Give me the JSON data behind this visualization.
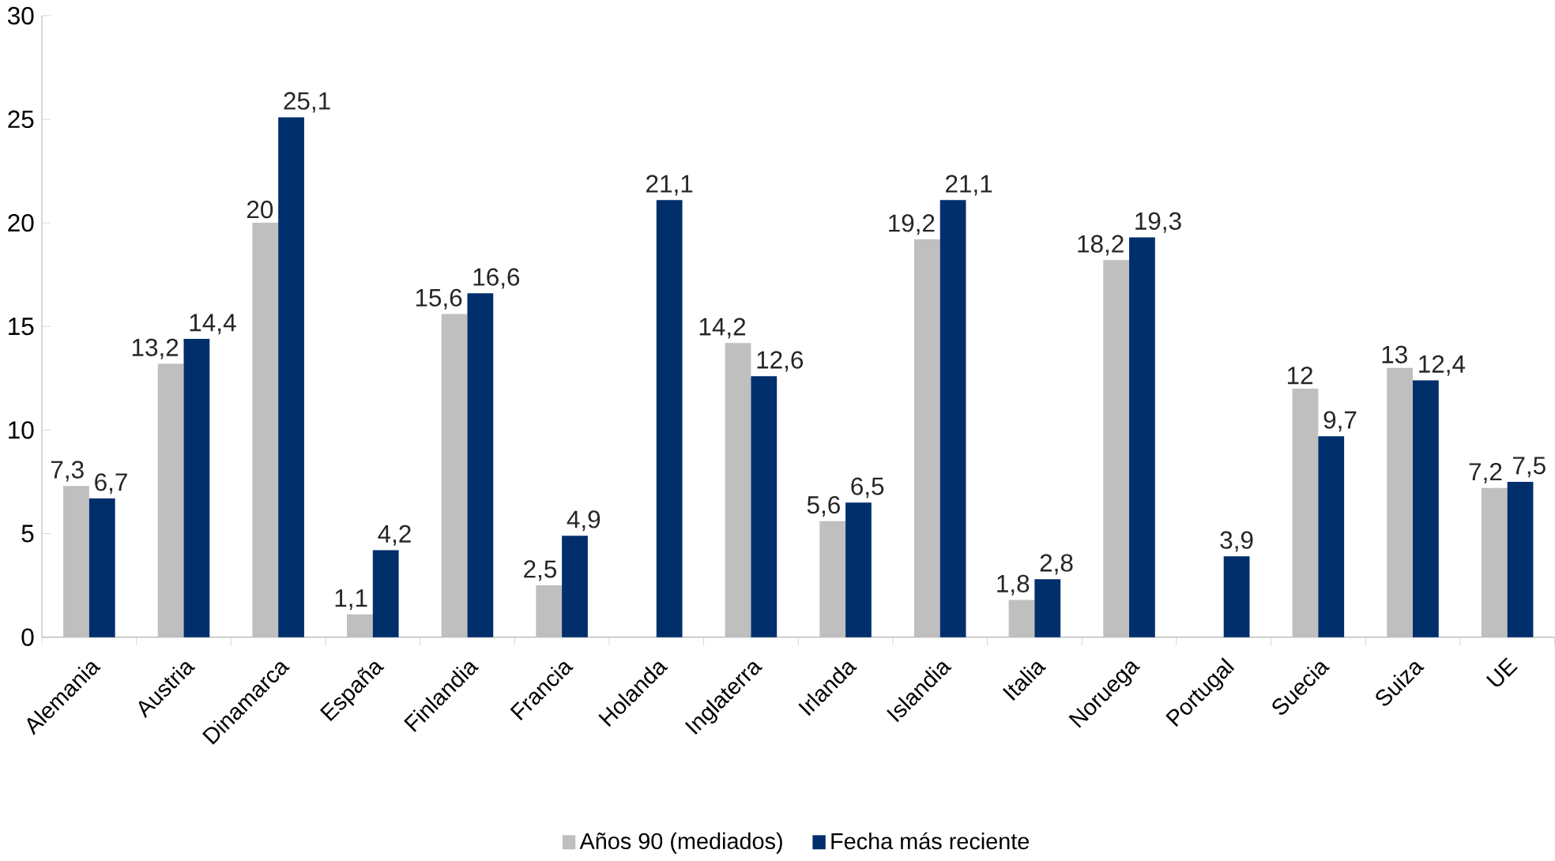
{
  "chart_data": {
    "type": "bar",
    "categories": [
      "Alemania",
      "Austria",
      "Dinamarca",
      "España",
      "Finlandia",
      "Francia",
      "Holanda",
      "Inglaterra",
      "Irlanda",
      "Islandia",
      "Italia",
      "Noruega",
      "Portugal",
      "Suecia",
      "Suiza",
      "UE"
    ],
    "series": [
      {
        "name": "Años 90 (mediados)",
        "color": "#bfbfbf",
        "values": [
          7.3,
          13.2,
          20,
          1.1,
          15.6,
          2.5,
          null,
          14.2,
          5.6,
          19.2,
          1.8,
          18.2,
          null,
          12,
          13,
          7.2
        ],
        "value_labels": [
          "7,3",
          "13,2",
          "20",
          "1,1",
          "15,6",
          "2,5",
          null,
          "14,2",
          "5,6",
          "19,2",
          "1,8",
          "18,2",
          null,
          "12",
          "13",
          "7,2"
        ]
      },
      {
        "name": "Fecha más reciente",
        "color": "#002f6c",
        "values": [
          6.7,
          14.4,
          25.1,
          4.2,
          16.6,
          4.9,
          21.1,
          12.6,
          6.5,
          21.1,
          2.8,
          19.3,
          3.9,
          9.7,
          12.4,
          7.5
        ],
        "value_labels": [
          "6,7",
          "14,4",
          "25,1",
          "4,2",
          "16,6",
          "4,9",
          "21,1",
          "12,6",
          "6,5",
          "21,1",
          "2,8",
          "19,3",
          "3,9",
          "9,7",
          "12,4",
          "7,5"
        ]
      }
    ],
    "ylim": [
      0,
      30
    ],
    "yticks": [
      0,
      5,
      10,
      15,
      20,
      25,
      30
    ],
    "legend": "bottom"
  }
}
